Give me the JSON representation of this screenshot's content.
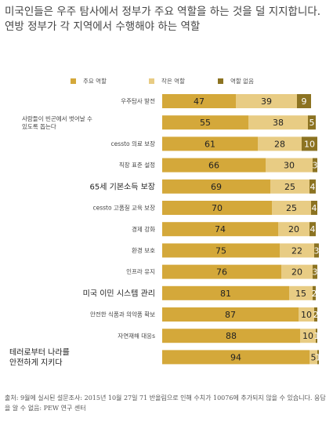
{
  "title": "미국인들은 우주 탐사에서 정부가 주요 역할을 하는 것을 덜 지지합니다. 연방 정부가 각 지역에서 수행해야 하는 역할",
  "footer": "출처: 9월에 실시된 설문조사: 2015년 10월 27일 71 반올림으로 인해 수치가 10076에 추가되지 않을 수 있습니다. 응답을 알 수 없음: PEW 연구 센터",
  "chart_data": {
    "type": "bar",
    "stacked": true,
    "orientation": "horizontal",
    "title": "",
    "xlim": [
      0,
      100
    ],
    "grid": false,
    "legend_position": "top",
    "categories": [
      "우주탐사 발전",
      "사람들이 빈곤에서 벗어날 수 있도록 돕는다",
      "cessto 의료 보장",
      "직장 표준 설정",
      "65세 기본소득 보장",
      "cessto 고품질 교육 보장",
      "경제 강화",
      "환경 보호",
      "인프라 유지",
      "미국 이민 시스템 관리",
      "안전한 식품과 의약품 확보",
      "자연재해 대응s",
      "테러로부터 나라를 안전하게 지키다"
    ],
    "series": [
      {
        "name": "주요 역할",
        "color": "#d4a83a",
        "values": [
          47,
          55,
          61,
          66,
          69,
          70,
          74,
          75,
          76,
          81,
          87,
          88,
          94
        ]
      },
      {
        "name": "작은 역할",
        "color": "#e8cc84",
        "values": [
          39,
          38,
          28,
          30,
          25,
          25,
          20,
          22,
          20,
          15,
          10,
          10,
          5
        ]
      },
      {
        "name": "역할 없음",
        "color": "#8c7322",
        "values": [
          9,
          5,
          10,
          3,
          4,
          4,
          4,
          3,
          3,
          2,
          2,
          1,
          1
        ]
      }
    ]
  }
}
